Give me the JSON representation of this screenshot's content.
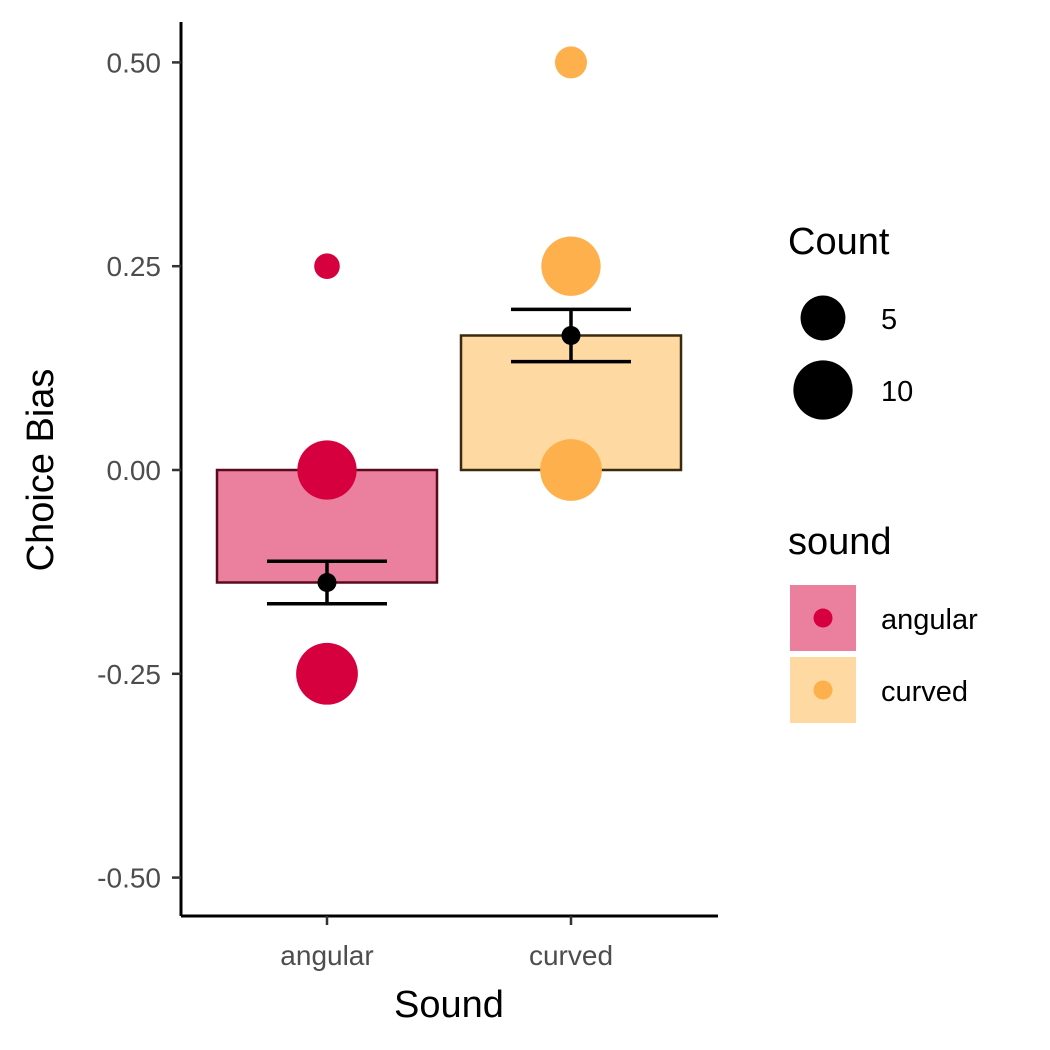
{
  "chart_data": {
    "type": "bar",
    "title": "",
    "xlabel": "Sound",
    "ylabel": "Choice Bias",
    "categories": [
      "angular",
      "curved"
    ],
    "ylim": [
      -0.55,
      0.55
    ],
    "yticks": [
      -0.5,
      -0.25,
      0.0,
      0.25,
      0.5
    ],
    "ytick_labels": [
      "-0.50",
      "-0.25",
      "0.00",
      "0.25",
      "0.50"
    ],
    "grid": false,
    "bars": [
      {
        "category": "angular",
        "value": -0.138,
        "fill": "#eb809e",
        "stroke": "#5a0a1e"
      },
      {
        "category": "curved",
        "value": 0.165,
        "fill": "#fed9a1",
        "stroke": "#3a2a10"
      }
    ],
    "error_bars": [
      {
        "category": "angular",
        "mean": -0.138,
        "lower": -0.164,
        "upper": -0.112
      },
      {
        "category": "curved",
        "mean": 0.165,
        "lower": 0.133,
        "upper": 0.197
      }
    ],
    "points": [
      {
        "category": "angular",
        "y": 0.25,
        "count": 1
      },
      {
        "category": "angular",
        "y": 0.0,
        "count": 10
      },
      {
        "category": "angular",
        "y": -0.25,
        "count": 11
      },
      {
        "category": "curved",
        "y": 0.5,
        "count": 2
      },
      {
        "category": "curved",
        "y": 0.25,
        "count": 10
      },
      {
        "category": "curved",
        "y": 0.0,
        "count": 11
      }
    ],
    "series_colors": {
      "angular": "#d6003f",
      "curved": "#fdb04b"
    },
    "legends": {
      "position": "right",
      "size": {
        "title": "Count",
        "entries": [
          {
            "label": "5",
            "value": 5
          },
          {
            "label": "10",
            "value": 10
          }
        ]
      },
      "fill": {
        "title": "sound",
        "entries": [
          {
            "label": "angular",
            "point_color": "#d6003f",
            "box_color": "#eb809e"
          },
          {
            "label": "curved",
            "point_color": "#fdb04b",
            "box_color": "#fed9a1"
          }
        ]
      }
    }
  }
}
